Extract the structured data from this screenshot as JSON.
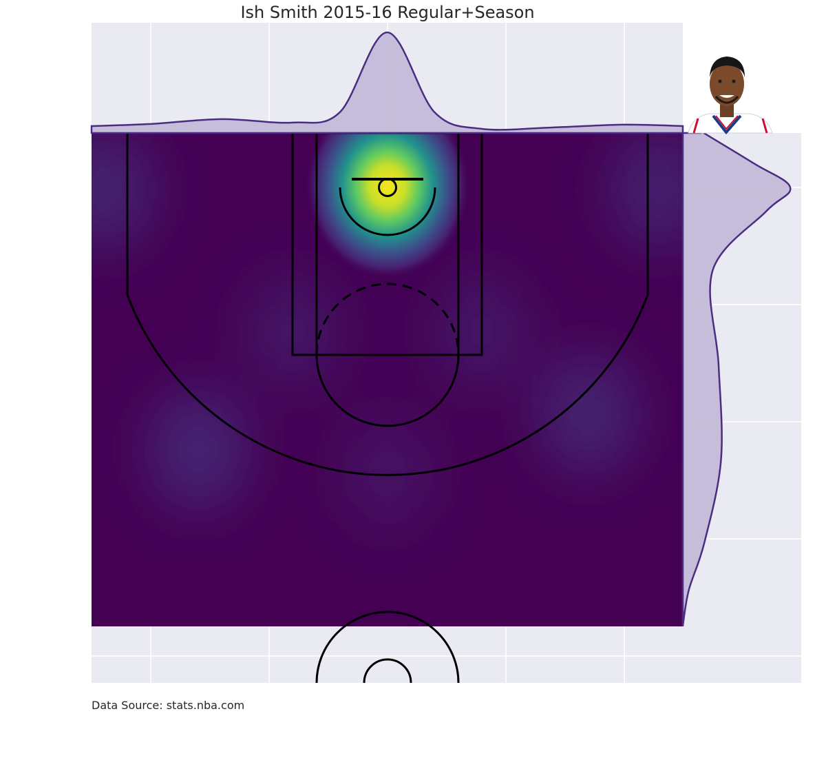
{
  "chart_data": {
    "type": "heatmap",
    "title": "Ish Smith 2015-16 Regular+Season",
    "source": "Data Source: stats.nba.com",
    "x_range": [
      -250,
      250
    ],
    "y_range": [
      -47.5,
      370
    ],
    "hotspots": [
      {
        "x": 0,
        "y": 0,
        "level": 1.0
      },
      {
        "x": -240,
        "y": 0,
        "level": 0.12
      },
      {
        "x": 230,
        "y": 0,
        "level": 0.11
      },
      {
        "x": -160,
        "y": 220,
        "level": 0.13
      },
      {
        "x": 170,
        "y": 190,
        "level": 0.12
      },
      {
        "x": 0,
        "y": 240,
        "level": 0.06
      },
      {
        "x": -80,
        "y": 120,
        "level": 0.07
      },
      {
        "x": 80,
        "y": 120,
        "level": 0.07
      }
    ],
    "x_marginal": [
      {
        "x": -250,
        "d": 0.01
      },
      {
        "x": -200,
        "d": 0.013
      },
      {
        "x": -140,
        "d": 0.02
      },
      {
        "x": -80,
        "d": 0.015
      },
      {
        "x": -40,
        "d": 0.03
      },
      {
        "x": 0,
        "d": 0.145
      },
      {
        "x": 40,
        "d": 0.03
      },
      {
        "x": 80,
        "d": 0.006
      },
      {
        "x": 140,
        "d": 0.008
      },
      {
        "x": 200,
        "d": 0.012
      },
      {
        "x": 250,
        "d": 0.01
      }
    ],
    "y_marginal": [
      {
        "y": -47.5,
        "d": 0.015
      },
      {
        "y": -20,
        "d": 0.06
      },
      {
        "y": 0,
        "d": 0.09
      },
      {
        "y": 20,
        "d": 0.07
      },
      {
        "y": 70,
        "d": 0.025
      },
      {
        "y": 150,
        "d": 0.03
      },
      {
        "y": 230,
        "d": 0.032
      },
      {
        "y": 300,
        "d": 0.018
      },
      {
        "y": 340,
        "d": 0.005
      },
      {
        "y": 370,
        "d": 0.0
      }
    ]
  },
  "colors": {
    "viridis_low": "#440154",
    "viridis_high": "#fde725",
    "marginal_line": "#4a2d82",
    "marginal_fill": "#c4bad8",
    "panel_bg": "#eaeaf2"
  },
  "avatar": {
    "icon": "player-headshot"
  }
}
